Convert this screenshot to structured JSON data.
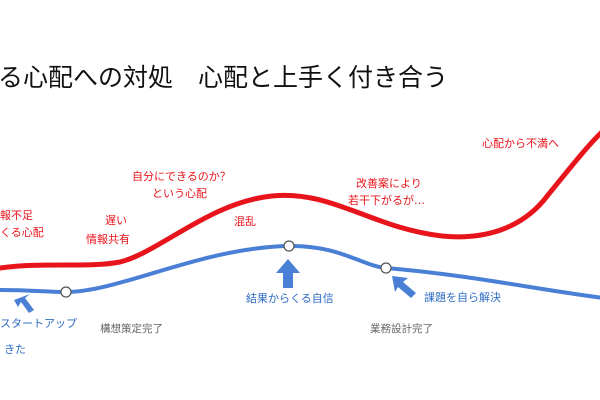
{
  "slide": {
    "title": "る心配への対処　心配と上手く付き合う",
    "colors": {
      "worry": "#e8141c",
      "confidence": "#4a7fd6",
      "milestone": "#666666",
      "marker_text": "#2e6bc4"
    }
  },
  "worry_labels": [
    {
      "lines": [
        "報不足",
        "くる心配"
      ]
    },
    {
      "lines": [
        "遅い",
        "情報共有"
      ]
    },
    {
      "lines": [
        "自分にできるのか？",
        "という心配"
      ]
    },
    {
      "lines": [
        "混乱"
      ]
    },
    {
      "lines": [
        "改善案により",
        "若干下がるが…"
      ]
    },
    {
      "lines": [
        "心配から不満へ"
      ]
    }
  ],
  "confidence_labels": [
    {
      "text": "スタートアップ"
    },
    {
      "text": "きた"
    },
    {
      "text": "結果からくる自信"
    },
    {
      "text": "課題を自ら解決"
    }
  ],
  "milestones": [
    {
      "text": "構想策定完了"
    },
    {
      "text": "業務設計完了"
    }
  ]
}
